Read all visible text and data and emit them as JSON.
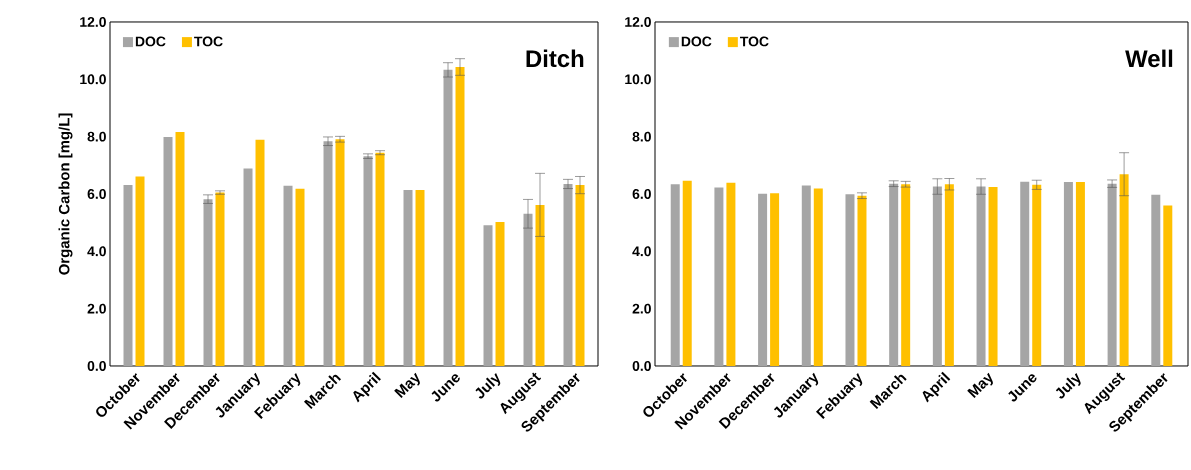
{
  "chart_data": [
    {
      "type": "bar",
      "title": "Ditch",
      "ylabel": "Organic Carbon [mg/L]",
      "legend": "top left",
      "categories": [
        "October",
        "November",
        "December",
        "January",
        "Febuary",
        "March",
        "April",
        "May",
        "June",
        "July",
        "August",
        "September"
      ],
      "ylim": [
        0,
        12
      ],
      "yticks": [
        {
          "value": 0,
          "label": "0.0"
        },
        {
          "value": 2,
          "label": "2.0"
        },
        {
          "value": 4,
          "label": "4.0"
        },
        {
          "value": 6,
          "label": "6.0"
        },
        {
          "value": 8,
          "label": "8.0"
        },
        {
          "value": 10,
          "label": "10.0"
        },
        {
          "value": 12,
          "label": "12.0"
        }
      ],
      "series": [
        {
          "name": "DOC",
          "color": "#a5a5a5",
          "values": [
            6.31,
            7.99,
            5.82,
            6.89,
            6.29,
            7.84,
            7.32,
            6.14,
            10.33,
            4.91,
            5.31,
            6.35
          ],
          "errors": [
            null,
            null,
            0.15,
            null,
            null,
            0.15,
            0.08,
            null,
            0.25,
            null,
            0.5,
            0.16
          ]
        },
        {
          "name": "TOC",
          "color": "#ffc000",
          "values": [
            6.61,
            8.16,
            6.05,
            7.89,
            6.18,
            7.91,
            7.44,
            6.14,
            10.43,
            5.02,
            5.62,
            6.31
          ],
          "errors": [
            null,
            null,
            0.06,
            null,
            null,
            0.1,
            0.07,
            null,
            0.29,
            null,
            1.1,
            0.3
          ]
        }
      ]
    },
    {
      "type": "bar",
      "title": "Well",
      "legend": "top left",
      "categories": [
        "October",
        "November",
        "December",
        "January",
        "Febuary",
        "March",
        "April",
        "May",
        "June",
        "July",
        "August",
        "September"
      ],
      "ylim": [
        0,
        12
      ],
      "yticks": [
        {
          "value": 0,
          "label": "0.0"
        },
        {
          "value": 2,
          "label": "2.0"
        },
        {
          "value": 4,
          "label": "4.0"
        },
        {
          "value": 6,
          "label": "6.0"
        },
        {
          "value": 8,
          "label": "8.0"
        },
        {
          "value": 10,
          "label": "10.0"
        },
        {
          "value": 12,
          "label": "12.0"
        }
      ],
      "series": [
        {
          "name": "DOC",
          "color": "#a5a5a5",
          "values": [
            6.34,
            6.23,
            6.01,
            6.3,
            5.99,
            6.36,
            6.26,
            6.26,
            6.43,
            6.42,
            6.36,
            5.97
          ],
          "errors": [
            null,
            null,
            null,
            null,
            null,
            0.1,
            0.27,
            0.27,
            null,
            null,
            0.13,
            null
          ]
        },
        {
          "name": "TOC",
          "color": "#ffc000",
          "values": [
            6.46,
            6.39,
            6.03,
            6.19,
            5.94,
            6.34,
            6.34,
            6.24,
            6.32,
            6.42,
            6.69,
            5.6
          ],
          "errors": [
            null,
            null,
            null,
            null,
            0.1,
            0.1,
            0.2,
            null,
            0.16,
            null,
            0.75,
            null
          ]
        }
      ]
    }
  ]
}
